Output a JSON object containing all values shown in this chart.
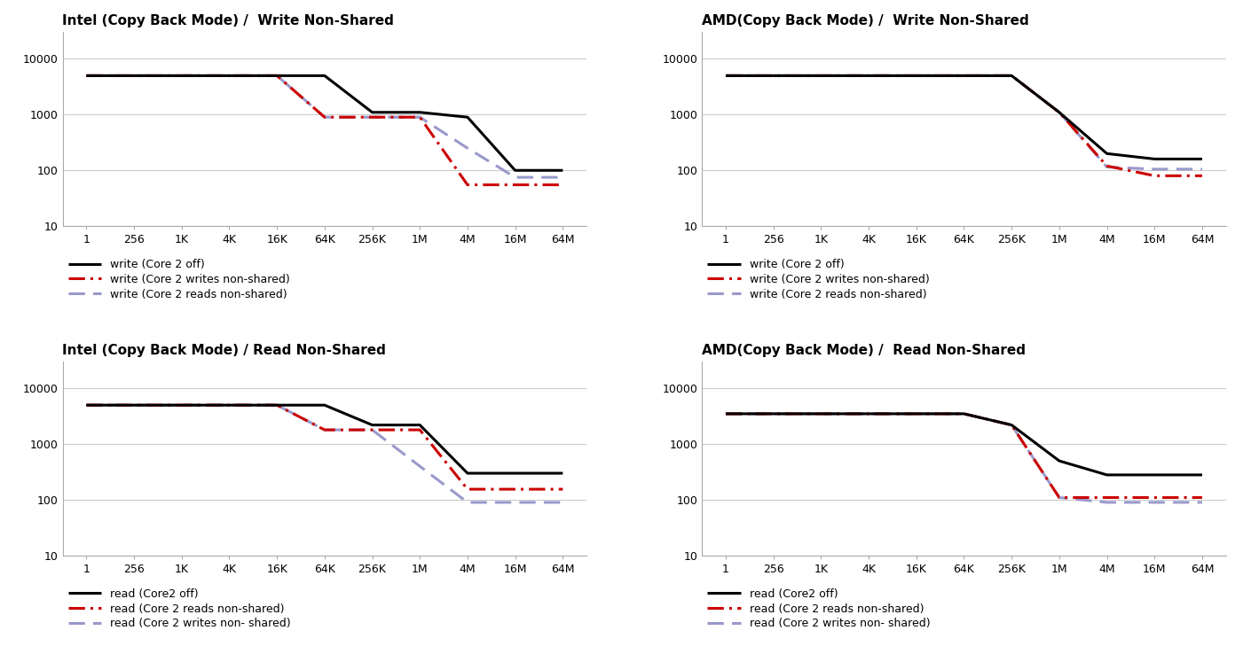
{
  "x_labels": [
    "1",
    "256",
    "1K",
    "4K",
    "16K",
    "64K",
    "256K",
    "1M",
    "4M",
    "16M",
    "64M"
  ],
  "intel_write": {
    "title": "Intel (Copy Back Mode) /  Write Non-Shared",
    "line1": [
      5000,
      5000,
      5000,
      5000,
      5000,
      5000,
      1100,
      1100,
      900,
      100,
      100
    ],
    "line2": [
      5000,
      5000,
      5000,
      5000,
      5000,
      900,
      900,
      900,
      55,
      55,
      55
    ],
    "line3": [
      5000,
      5000,
      5000,
      5000,
      5000,
      900,
      900,
      900,
      250,
      75,
      75
    ],
    "legend": [
      "write (Core 2 off)",
      "write (Core 2 writes non-shared)",
      "write (Core 2 reads non-shared)"
    ]
  },
  "amd_write": {
    "title": "AMD(Copy Back Mode) /  Write Non-Shared",
    "line1": [
      5000,
      5000,
      5000,
      5000,
      5000,
      5000,
      5000,
      1100,
      200,
      160,
      160
    ],
    "line2": [
      5000,
      5000,
      5000,
      5000,
      5000,
      5000,
      5000,
      1100,
      120,
      80,
      80
    ],
    "line3": [
      5000,
      5000,
      5000,
      5000,
      5000,
      5000,
      5000,
      1100,
      115,
      105,
      105
    ],
    "legend": [
      "write (Core 2 off)",
      "write (Core 2 writes non-shared)",
      "write (Core 2 reads non-shared)"
    ]
  },
  "intel_read": {
    "title": "Intel (Copy Back Mode) / Read Non-Shared",
    "line1": [
      5000,
      5000,
      5000,
      5000,
      5000,
      5000,
      2200,
      2200,
      300,
      300,
      300
    ],
    "line2": [
      5000,
      5000,
      5000,
      5000,
      5000,
      1800,
      1800,
      1800,
      155,
      155,
      155
    ],
    "line3": [
      5000,
      5000,
      5000,
      5000,
      5000,
      1800,
      1800,
      400,
      90,
      90,
      90
    ],
    "legend": [
      "read (Core2 off)",
      "read (Core 2 reads non-shared)",
      "read (Core 2 writes non- shared)"
    ]
  },
  "amd_read": {
    "title": "AMD(Copy Back Mode) /  Read Non-Shared",
    "line1": [
      3500,
      3500,
      3500,
      3500,
      3500,
      3500,
      2200,
      500,
      280,
      280,
      280
    ],
    "line2": [
      3500,
      3500,
      3500,
      3500,
      3500,
      3500,
      2200,
      110,
      110,
      110,
      110
    ],
    "line3": [
      3500,
      3500,
      3500,
      3500,
      3500,
      3500,
      2200,
      110,
      90,
      90,
      90
    ],
    "legend": [
      "read (Core2 off)",
      "read (Core 2 reads non-shared)",
      "read (Core 2 writes non- shared)"
    ]
  },
  "colors": {
    "black": "#000000",
    "red": "#CC0000",
    "purple": "#9999CC"
  },
  "ylim": [
    10,
    30000
  ],
  "yticks": [
    10,
    100,
    1000,
    10000
  ],
  "background": "#ffffff",
  "grid_color": "#cccccc"
}
